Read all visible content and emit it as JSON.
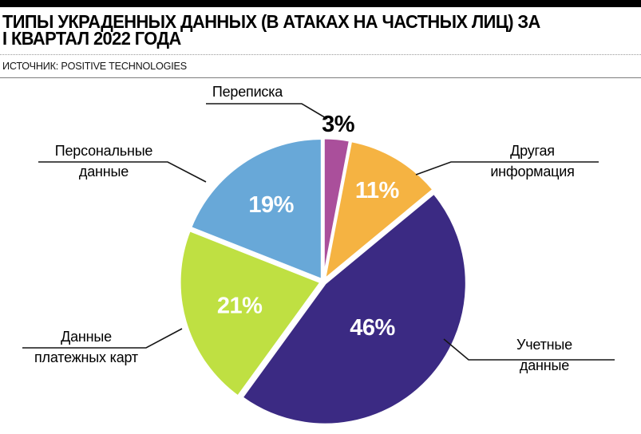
{
  "header": {
    "title_line1": "ТИПЫ УКРАДЕННЫХ ДАННЫХ (В АТАКАХ НА ЧАСТНЫХ ЛИЦ) ЗА",
    "title_line2": "I КВАРТАЛ 2022 ГОДА",
    "source": "ИСТОЧНИК: POSITIVE TECHNOLOGIES"
  },
  "chart_data": {
    "type": "pie",
    "title": "Типы украденных данных (в атаках на частных лиц) за I квартал 2022 года",
    "source": "Positive Technologies",
    "unit": "%",
    "start_angle_deg": 0,
    "direction": "clockwise",
    "legend_position": "callout-labels",
    "categories": [
      "Переписка",
      "Другая информация",
      "Учетные данные",
      "Данные платежных карт",
      "Персональные данные"
    ],
    "values": [
      3,
      11,
      46,
      21,
      19
    ],
    "slices": [
      {
        "label": "Переписка",
        "label_lines": [
          "Переписка"
        ],
        "value": 3,
        "pct_label": "3%",
        "color": "#aa4f9b",
        "pct_label_color": "#000000",
        "label_radius_factor": 1.1
      },
      {
        "label": "Другая информация",
        "label_lines": [
          "Другая",
          "информация"
        ],
        "value": 11,
        "pct_label": "11%",
        "color": "#f5b342",
        "pct_label_color": "#ffffff",
        "label_radius_factor": 0.73
      },
      {
        "label": "Учетные данные",
        "label_lines": [
          "Учетные",
          "данные"
        ],
        "value": 46,
        "pct_label": "46%",
        "color": "#3b2a83",
        "pct_label_color": "#ffffff",
        "label_radius_factor": 0.46
      },
      {
        "label": "Данные платежных карт",
        "label_lines": [
          "Данные",
          "платежных карт"
        ],
        "value": 21,
        "pct_label": "21%",
        "color": "#bfe042",
        "pct_label_color": "#ffffff",
        "label_radius_factor": 0.6
      },
      {
        "label": "Персональные данные",
        "label_lines": [
          "Персональные",
          "данные"
        ],
        "value": 19,
        "pct_label": "19%",
        "color": "#68a8d8",
        "pct_label_color": "#ffffff",
        "label_radius_factor": 0.64
      }
    ]
  }
}
